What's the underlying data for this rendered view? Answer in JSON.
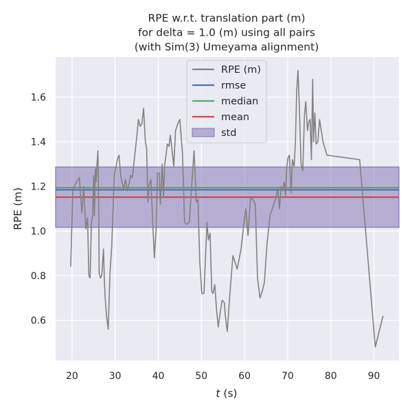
{
  "chart_data": {
    "type": "line",
    "title": [
      "RPE w.r.t. translation part (m)",
      "for delta = 1.0 (m) using all pairs",
      "(with Sim(3) Umeyama alignment)"
    ],
    "xlabel_var": "t",
    "xlabel_unit": " (s)",
    "ylabel": "RPE (m)",
    "xlim": [
      16.2,
      95.8
    ],
    "ylim": [
      0.42,
      1.78
    ],
    "x_ticks": [
      20,
      30,
      40,
      50,
      60,
      70,
      80,
      90
    ],
    "y_ticks": [
      0.6,
      0.8,
      1.0,
      1.2,
      1.4,
      1.6
    ],
    "grid": true,
    "legend_position": "upper-center",
    "colors": {
      "background": "#eaeaf2",
      "grid": "#ffffff",
      "rpe": "#808080",
      "rmse": "#4c72b0",
      "median": "#55a868",
      "mean": "#c44e52",
      "std": "#8172b2"
    },
    "legend": [
      {
        "label": "RPE (m)",
        "kind": "line",
        "color": "#808080"
      },
      {
        "label": "rmse",
        "kind": "line",
        "color": "#4c72b0"
      },
      {
        "label": "median",
        "kind": "line",
        "color": "#55a868"
      },
      {
        "label": "mean",
        "kind": "line",
        "color": "#c44e52"
      },
      {
        "label": "std",
        "kind": "patch",
        "color": "#8172b2"
      }
    ],
    "stats": {
      "rmse": 1.185,
      "median": 1.195,
      "mean": 1.152,
      "std_low": 1.017,
      "std_high": 1.287
    },
    "series": [
      {
        "name": "RPE (m)",
        "x": [
          19.7,
          20.2,
          21.7,
          22.3,
          22.7,
          23.2,
          23.6,
          23.9,
          24.2,
          24.5,
          24.8,
          25.0,
          25.2,
          25.4,
          25.6,
          25.8,
          26.0,
          26.2,
          26.3,
          26.6,
          26.9,
          27.3,
          27.5,
          27.7,
          28.0,
          28.4,
          28.8,
          29.2,
          29.8,
          30.5,
          30.9,
          31.3,
          31.6,
          32.0,
          32.4,
          32.8,
          33.2,
          33.6,
          34.0,
          34.6,
          35.0,
          35.4,
          35.8,
          36.2,
          36.6,
          37.0,
          37.3,
          37.6,
          37.9,
          38.3,
          38.8,
          39.1,
          39.5,
          39.8,
          40.2,
          40.5,
          40.9,
          41.2,
          41.5,
          41.8,
          42.1,
          42.5,
          42.8,
          43.2,
          43.6,
          44.0,
          44.5,
          45.0,
          45.6,
          46.1,
          46.6,
          47.2,
          47.8,
          48.3,
          48.8,
          49.2,
          49.6,
          50.1,
          50.6,
          51.0,
          51.3,
          51.6,
          52.0,
          52.4,
          52.7,
          53.1,
          53.5,
          53.9,
          54.4,
          54.8,
          55.3,
          55.6,
          56.0,
          56.6,
          57.3,
          58.3,
          59.2,
          59.9,
          60.3,
          60.8,
          61.4,
          62.0,
          62.5,
          63.0,
          63.6,
          64.1,
          64.6,
          65.2,
          65.9,
          66.6,
          67.3,
          67.7,
          68.1,
          68.5,
          68.8,
          69.2,
          69.5,
          69.8,
          70.1,
          70.4,
          70.8,
          71.1,
          71.5,
          71.8,
          72.1,
          72.4,
          72.7,
          73.1,
          73.5,
          73.9,
          74.2,
          74.6,
          74.9,
          75.2,
          75.5,
          75.8,
          76.0,
          76.3,
          76.6,
          77.0,
          77.4,
          78.2,
          79.1,
          86.7,
          90.3,
          92.1
        ],
        "y": [
          0.84,
          1.19,
          1.24,
          1.08,
          1.2,
          1.01,
          1.06,
          0.8,
          0.79,
          1.04,
          1.07,
          1.25,
          1.07,
          1.28,
          1.22,
          1.3,
          1.36,
          1.1,
          0.81,
          0.79,
          0.8,
          0.92,
          0.78,
          0.7,
          0.62,
          0.56,
          0.81,
          0.93,
          1.25,
          1.32,
          1.34,
          1.25,
          1.22,
          1.19,
          1.23,
          1.18,
          1.21,
          1.25,
          1.24,
          1.35,
          1.42,
          1.5,
          1.47,
          1.48,
          1.55,
          1.4,
          1.37,
          1.13,
          1.21,
          1.23,
          1.0,
          0.88,
          1.01,
          1.26,
          1.26,
          1.12,
          1.3,
          1.15,
          1.3,
          1.34,
          1.39,
          1.38,
          1.43,
          1.36,
          1.29,
          1.45,
          1.48,
          1.5,
          1.35,
          1.04,
          1.03,
          1.04,
          1.22,
          1.36,
          1.13,
          1.14,
          0.87,
          0.72,
          0.72,
          0.91,
          1.04,
          0.96,
          0.99,
          0.73,
          0.72,
          0.76,
          0.65,
          0.57,
          0.64,
          0.69,
          0.68,
          0.61,
          0.55,
          0.72,
          0.89,
          0.83,
          0.92,
          1.04,
          1.1,
          0.98,
          1.15,
          1.14,
          1.12,
          0.79,
          0.7,
          0.73,
          0.77,
          0.94,
          1.07,
          1.11,
          1.15,
          1.19,
          1.1,
          1.2,
          1.18,
          1.22,
          1.16,
          1.29,
          1.33,
          1.34,
          1.17,
          1.32,
          1.29,
          1.4,
          1.63,
          1.72,
          1.56,
          1.3,
          1.27,
          1.52,
          1.58,
          1.45,
          1.49,
          1.5,
          1.32,
          1.68,
          1.4,
          1.53,
          1.39,
          1.4,
          1.5,
          1.4,
          1.34,
          1.32,
          0.48,
          0.62
        ]
      }
    ]
  }
}
